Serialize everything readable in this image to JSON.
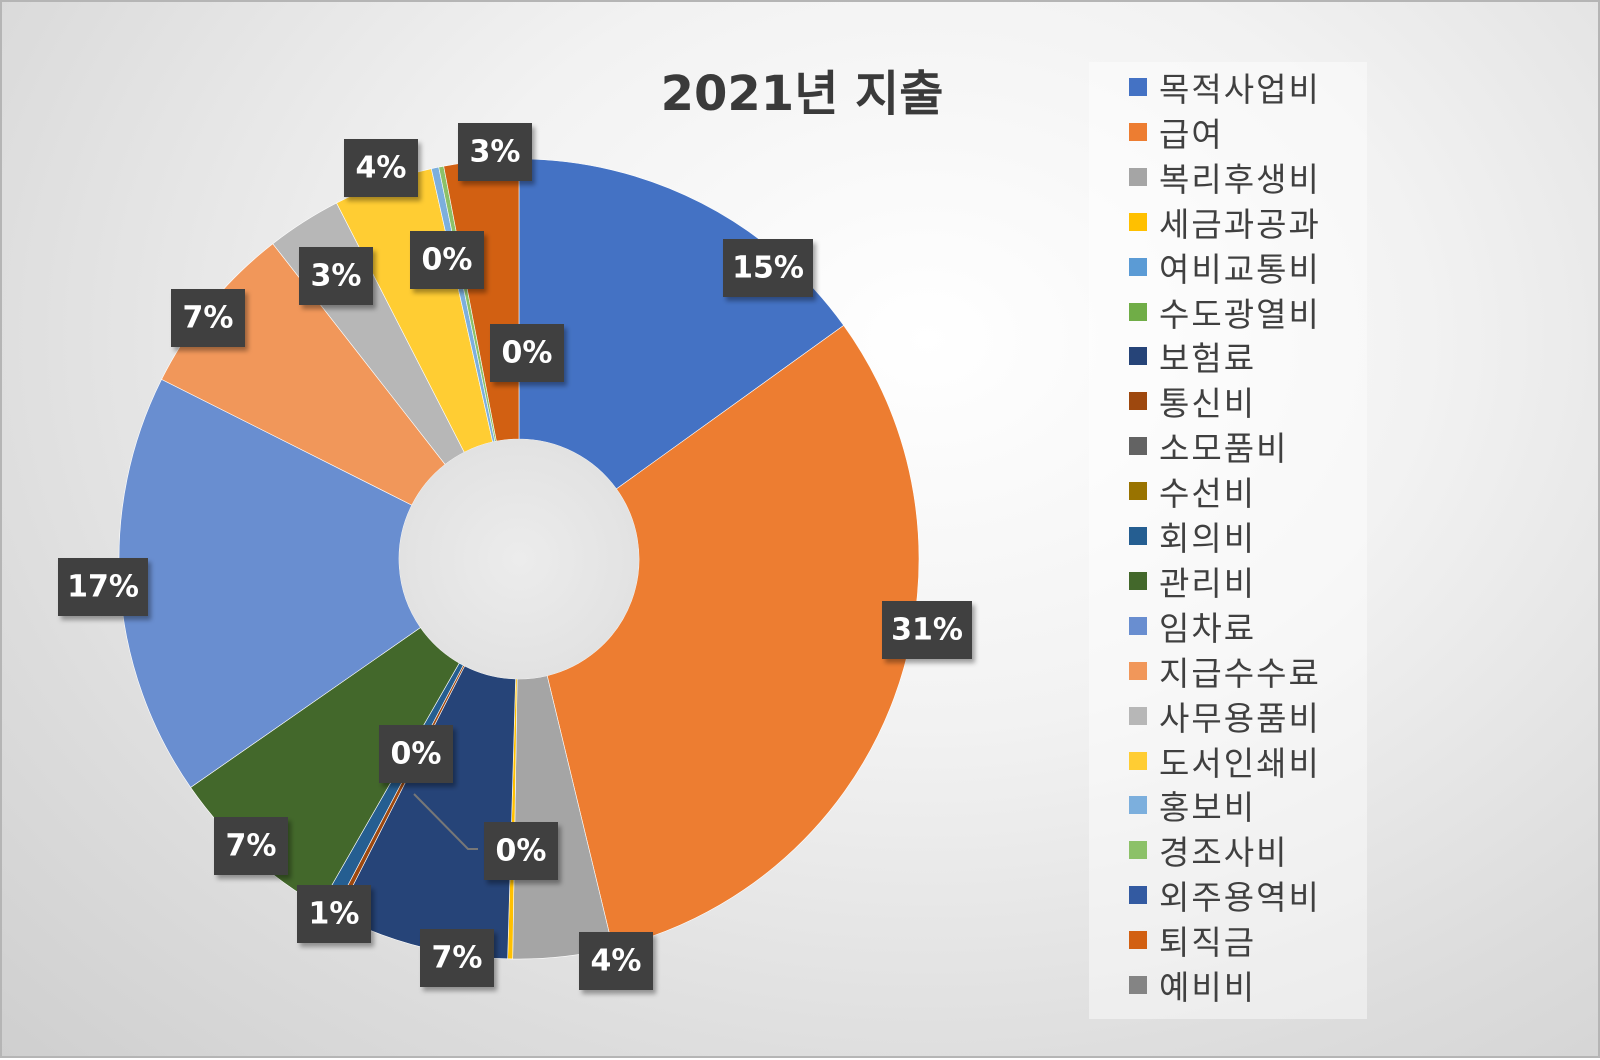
{
  "chart_data": {
    "type": "pie",
    "variant": "doughnut",
    "title": "2021년 지출",
    "legend_position": "right",
    "slices": [
      {
        "label": "목적사업비",
        "value": 15,
        "display": "15%",
        "color": "#4472C4"
      },
      {
        "label": "급여",
        "value": 31,
        "display": "31%",
        "color": "#ED7D31"
      },
      {
        "label": "복리후생비",
        "value": 4,
        "display": "4%",
        "color": "#A5A5A5"
      },
      {
        "label": "세금과공과",
        "value": 0.2,
        "display": "0%",
        "color": "#FFC000"
      },
      {
        "label": "여비교통비",
        "value": 0,
        "color": "#5B9BD5"
      },
      {
        "label": "수도광열비",
        "value": 0,
        "color": "#70AD47"
      },
      {
        "label": "보험료",
        "value": 7,
        "display": "7%",
        "color": "#264478"
      },
      {
        "label": "통신비",
        "value": 0.2,
        "display": "0%",
        "color": "#9E480E"
      },
      {
        "label": "소모품비",
        "value": 0,
        "color": "#636363"
      },
      {
        "label": "수선비",
        "value": 0,
        "color": "#997300"
      },
      {
        "label": "회의비",
        "value": 0.6,
        "display": "1%",
        "color": "#255E91"
      },
      {
        "label": "관리비",
        "value": 7,
        "display": "7%",
        "color": "#43682B"
      },
      {
        "label": "임차료",
        "value": 17,
        "display": "17%",
        "color": "#698ED0"
      },
      {
        "label": "지급수수료",
        "value": 7,
        "display": "7%",
        "color": "#F1975A"
      },
      {
        "label": "사무용품비",
        "value": 3,
        "display": "3%",
        "color": "#B7B7B7"
      },
      {
        "label": "도서인쇄비",
        "value": 4,
        "display": "4%",
        "color": "#FFCD33"
      },
      {
        "label": "홍보비",
        "value": 0.3,
        "display": "0%",
        "color": "#7CAFDD"
      },
      {
        "label": "경조사비",
        "value": 0.2,
        "color": "#8CC168"
      },
      {
        "label": "외주용역비",
        "value": 0,
        "display": "0%",
        "color": "#335AA1"
      },
      {
        "label": "퇴직금",
        "value": 3,
        "display": "3%",
        "color": "#D26012"
      },
      {
        "label": "예비비",
        "value": 0,
        "color": "#848484"
      }
    ]
  }
}
